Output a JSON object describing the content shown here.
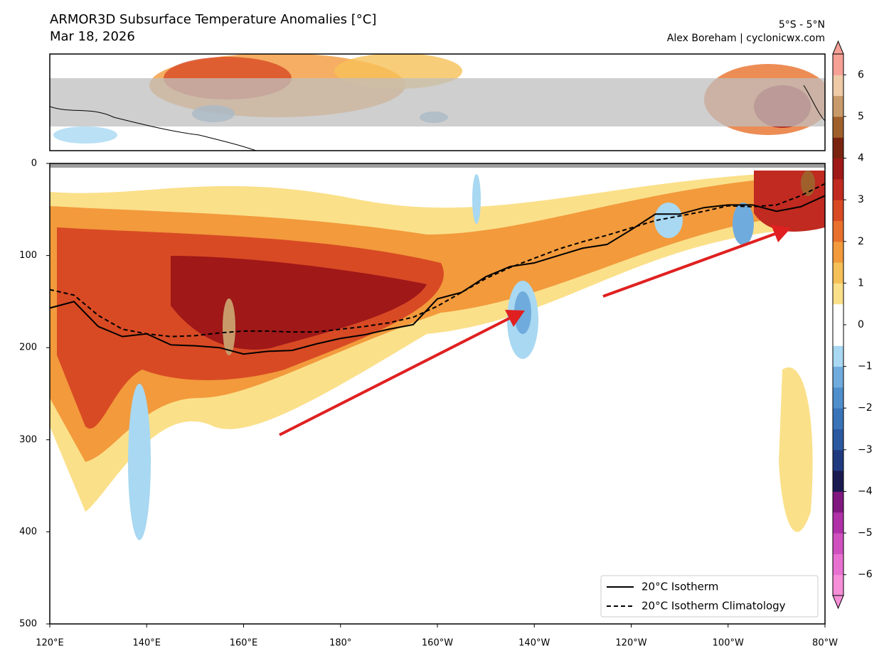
{
  "chart_data": {
    "type": "contour",
    "title": "ARMOR3D Subsurface Temperature Anomalies [°C]",
    "subtitle": "Mar 18, 2026",
    "region": "5°S - 5°N",
    "credit": "Alex Boreham | cyclonicwx.com",
    "x": [
      120,
      125,
      130,
      135,
      140,
      145,
      150,
      155,
      160,
      165,
      170,
      175,
      180,
      185,
      190,
      195,
      200,
      205,
      210,
      215,
      220,
      225,
      230,
      235,
      240,
      245,
      250,
      255,
      260,
      265,
      270,
      275,
      280
    ],
    "series": [
      {
        "name": "20°C Isotherm",
        "color": "#000000",
        "dash": "solid",
        "values": [
          157,
          150,
          177,
          188,
          185,
          197,
          198,
          200,
          207,
          204,
          203,
          196,
          190,
          186,
          180,
          175,
          147,
          140,
          123,
          112,
          108,
          100,
          92,
          88,
          72,
          55,
          55,
          48,
          45,
          45,
          52,
          47,
          35
        ]
      },
      {
        "name": "20°C Isotherm Climatology",
        "color": "#000000",
        "dash": "dashed",
        "values": [
          137,
          143,
          165,
          180,
          185,
          188,
          187,
          184,
          182,
          182,
          183,
          183,
          180,
          177,
          173,
          167,
          155,
          140,
          125,
          113,
          103,
          93,
          85,
          78,
          70,
          62,
          57,
          52,
          46,
          47,
          45,
          35,
          22
        ]
      }
    ],
    "xlim": [
      120,
      280
    ],
    "xticks": [
      {
        "value": 120,
        "label": "120°E"
      },
      {
        "value": 140,
        "label": "140°E"
      },
      {
        "value": 160,
        "label": "160°E"
      },
      {
        "value": 180,
        "label": "180°"
      },
      {
        "value": 200,
        "label": "160°W"
      },
      {
        "value": 220,
        "label": "140°W"
      },
      {
        "value": 240,
        "label": "120°W"
      },
      {
        "value": 260,
        "label": "100°W"
      },
      {
        "value": 280,
        "label": "80°W"
      }
    ],
    "ylim": [
      0,
      500
    ],
    "y_inverted": true,
    "yticks": [
      0,
      100,
      200,
      300,
      400,
      500
    ],
    "legend": "lower right",
    "colorbar": {
      "lim": [
        -6.5,
        6.5
      ],
      "ticks": [
        {
          "value": -6,
          "label": "−6"
        },
        {
          "value": -5,
          "label": "−5"
        },
        {
          "value": -4,
          "label": "−4"
        },
        {
          "value": -3,
          "label": "−3"
        },
        {
          "value": -2,
          "label": "−2"
        },
        {
          "value": -1,
          "label": "−1"
        },
        0,
        1,
        2,
        3,
        4,
        5,
        6
      ],
      "colors": [
        "#f78fd8",
        "#e870d0",
        "#d050c0",
        "#b030a8",
        "#801880",
        "#1a1a50",
        "#203a80",
        "#2b5aa0",
        "#3a74b8",
        "#4e8fcc",
        "#6fabdd",
        "#a8d8f2",
        "#ffffff",
        "#ffffff",
        "#fbe08a",
        "#f6c058",
        "#f29a3c",
        "#e8702c",
        "#d84a24",
        "#c02a20",
        "#a01818",
        "#7a2410",
        "#a0602c",
        "#c89a6a",
        "#eecaa6",
        "#f6a096"
      ]
    }
  }
}
